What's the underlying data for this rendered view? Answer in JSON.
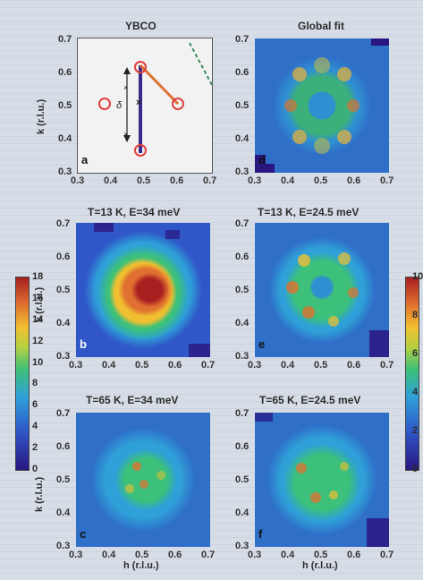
{
  "panels": {
    "a": {
      "title": "YBCO",
      "letter": "a",
      "ylabel": "k (r.l.u.)",
      "delta": "δ"
    },
    "d": {
      "title": "Global fit",
      "letter": "d"
    },
    "b": {
      "title": "T=13 K, E=34 meV",
      "letter": "b",
      "ylabel": "k (r.l.u.)"
    },
    "e": {
      "title": "T=13 K, E=24.5 meV",
      "letter": "e"
    },
    "c": {
      "title": "T=65 K, E=34 meV",
      "letter": "c",
      "ylabel": "k (r.l.u.)",
      "xlabel": "h (r.l.u.)"
    },
    "f": {
      "title": "T=65 K, E=24.5 meV",
      "letter": "f",
      "xlabel": "h (r.l.u.)"
    }
  },
  "axis_ticks": {
    "x": [
      "0.3",
      "0.4",
      "0.5",
      "0.6",
      "0.7"
    ],
    "y": [
      "0.3",
      "0.4",
      "0.5",
      "0.6",
      "0.7"
    ]
  },
  "colorbar_left": {
    "ticks": [
      "0",
      "2",
      "4",
      "6",
      "8",
      "10",
      "12",
      "14",
      "16",
      "18"
    ]
  },
  "colorbar_right": {
    "ticks": [
      "0",
      "2",
      "4",
      "6",
      "8",
      "10"
    ]
  },
  "colors": {
    "low": "#2a1680",
    "mid_blue": "#2f57c8",
    "cyan": "#2fa0d8",
    "green": "#3cc07a",
    "yellow": "#f0c030",
    "orange": "#e07030",
    "red": "#a82020",
    "circle": "#e04040",
    "path": "#e07030",
    "arrow_line": "#3a2a8a"
  }
}
